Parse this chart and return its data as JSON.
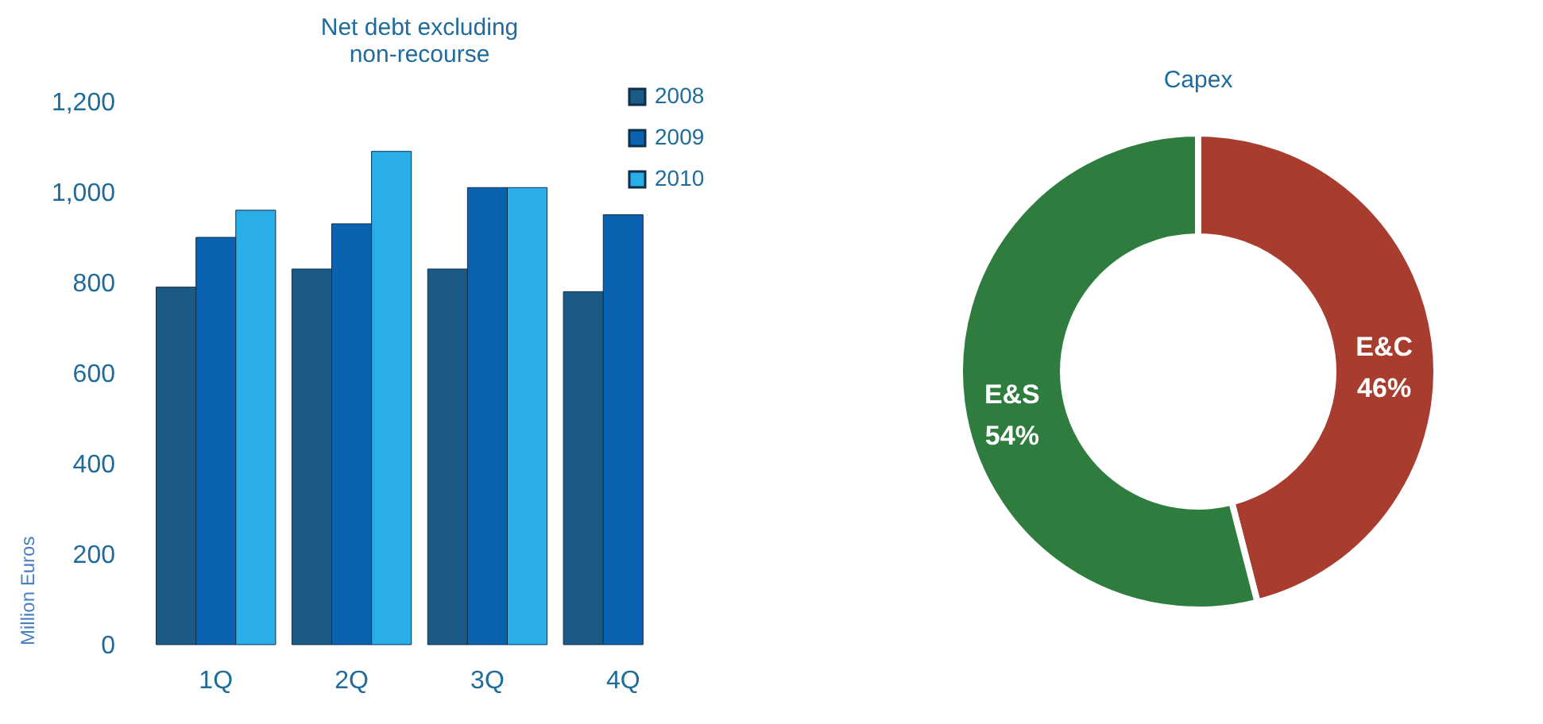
{
  "chart_data": [
    {
      "type": "bar",
      "title": "Net debt excluding\nnon-recourse",
      "ylabel": "Million Euros",
      "categories": [
        "1Q",
        "2Q",
        "3Q",
        "4Q"
      ],
      "series": [
        {
          "name": "2008",
          "color": "#1a5a85",
          "values": [
            790,
            830,
            830,
            780
          ]
        },
        {
          "name": "2009",
          "color": "#0a62b0",
          "values": [
            900,
            930,
            1010,
            950
          ]
        },
        {
          "name": "2010",
          "color": "#2aaee8",
          "values": [
            960,
            1090,
            1010,
            null
          ]
        }
      ],
      "ylim": [
        0,
        1200
      ],
      "yticks": [
        {
          "value": 0,
          "label": "0"
        },
        {
          "value": 200,
          "label": "200"
        },
        {
          "value": 400,
          "label": "400"
        },
        {
          "value": 600,
          "label": "600"
        },
        {
          "value": 800,
          "label": "800"
        },
        {
          "value": 1000,
          "label": "1,000"
        },
        {
          "value": 1200,
          "label": "1,200"
        }
      ],
      "grid": false,
      "legend": "top right"
    },
    {
      "type": "donut",
      "title": "Capex",
      "categories": [
        "E&C",
        "E&S"
      ],
      "values": [
        46,
        54
      ],
      "colors": [
        "#a83c2e",
        "#2e7d3e"
      ],
      "value_labels": [
        "46%",
        "54%"
      ]
    }
  ]
}
